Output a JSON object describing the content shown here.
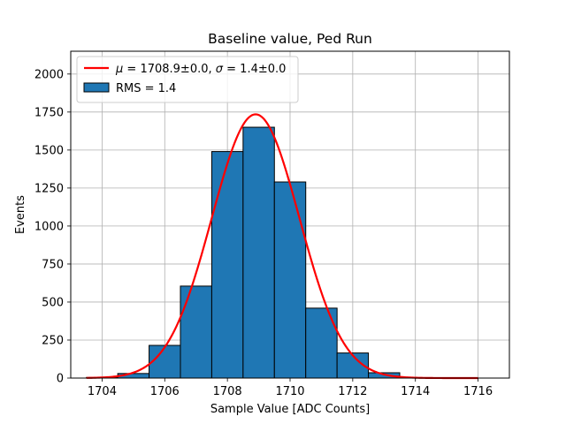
{
  "chart_data": {
    "type": "bar",
    "title": "Baseline value, Ped Run",
    "xlabel": "Sample Value [ADC Counts]",
    "ylabel": "Events",
    "xlim": [
      1703.0,
      1717.0
    ],
    "ylim": [
      0,
      2150
    ],
    "xticks": [
      1704,
      1706,
      1708,
      1710,
      1712,
      1714,
      1716
    ],
    "yticks": [
      0,
      250,
      500,
      750,
      1000,
      1250,
      1500,
      1750,
      2000
    ],
    "grid": true,
    "legend_position": "top-left",
    "histogram": {
      "name": "RMS = 1.4",
      "color": "#1f77b4",
      "edgecolor": "#000000",
      "bins": [
        {
          "x0": 1703.5,
          "x1": 1704.5,
          "count": 4
        },
        {
          "x0": 1704.5,
          "x1": 1705.5,
          "count": 30
        },
        {
          "x0": 1705.5,
          "x1": 1706.5,
          "count": 215
        },
        {
          "x0": 1706.5,
          "x1": 1707.5,
          "count": 605
        },
        {
          "x0": 1707.5,
          "x1": 1708.5,
          "count": 1490
        },
        {
          "x0": 1708.5,
          "x1": 1709.5,
          "count": 1650
        },
        {
          "x0": 1709.5,
          "x1": 1710.5,
          "count": 1290
        },
        {
          "x0": 1710.5,
          "x1": 1711.5,
          "count": 460
        },
        {
          "x0": 1711.5,
          "x1": 1712.5,
          "count": 165
        },
        {
          "x0": 1712.5,
          "x1": 1713.5,
          "count": 35
        },
        {
          "x0": 1713.5,
          "x1": 1714.5,
          "count": 2
        }
      ]
    },
    "fit": {
      "type": "gaussian",
      "name_mu_label": "μ",
      "name_rest": " = 1708.9±0.0, ",
      "name_sigma_label": "σ",
      "name_tail": " = 1.4±0.0",
      "color": "#ff0000",
      "amplitude": 1735,
      "mu": 1708.9,
      "sigma": 1.4,
      "x_range": [
        1703.5,
        1716.0
      ]
    }
  }
}
